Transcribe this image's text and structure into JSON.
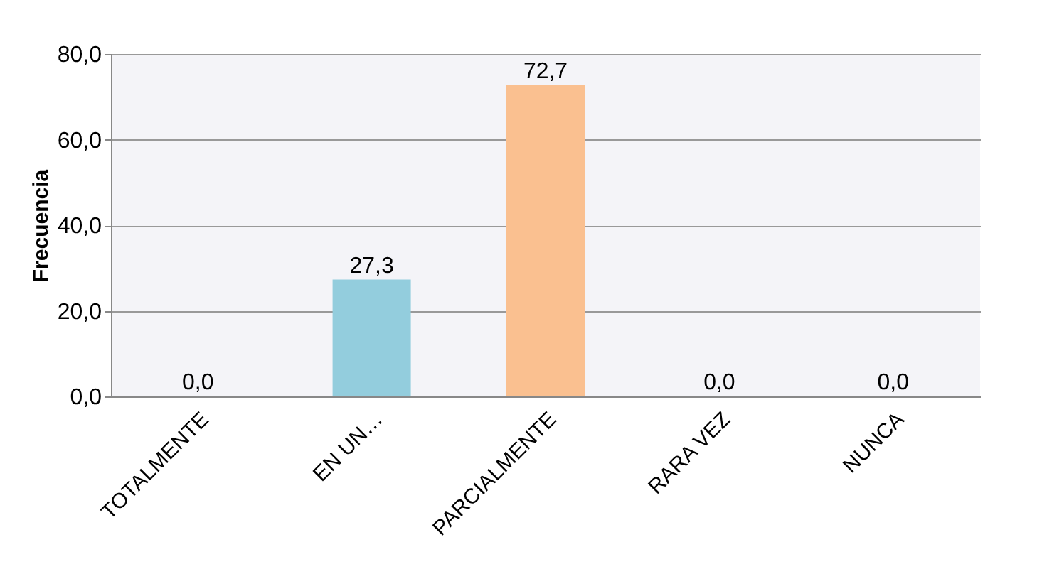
{
  "chart_data": {
    "type": "bar",
    "ylabel": "Frecuencia",
    "categories": [
      "TOTALMENTE",
      "EN UN…",
      "PARCIALMENTE",
      "RARA VEZ",
      "NUNCA"
    ],
    "values": [
      0,
      27.3,
      72.7,
      0,
      0
    ],
    "value_labels": [
      "0,0",
      "27,3",
      "72,7",
      "0,0",
      "0,0"
    ],
    "colors": [
      "#e6b9b8",
      "#93cddd",
      "#fac090",
      "#d7e4bd",
      "#b3a2c7"
    ],
    "ylim": [
      0,
      80
    ],
    "yticks": [
      {
        "value": 0,
        "label": "0,0"
      },
      {
        "value": 20,
        "label": "20,0"
      },
      {
        "value": 40,
        "label": "40,0"
      },
      {
        "value": 60,
        "label": "60,0"
      },
      {
        "value": 80,
        "label": "80,0"
      }
    ],
    "grid": "y"
  }
}
